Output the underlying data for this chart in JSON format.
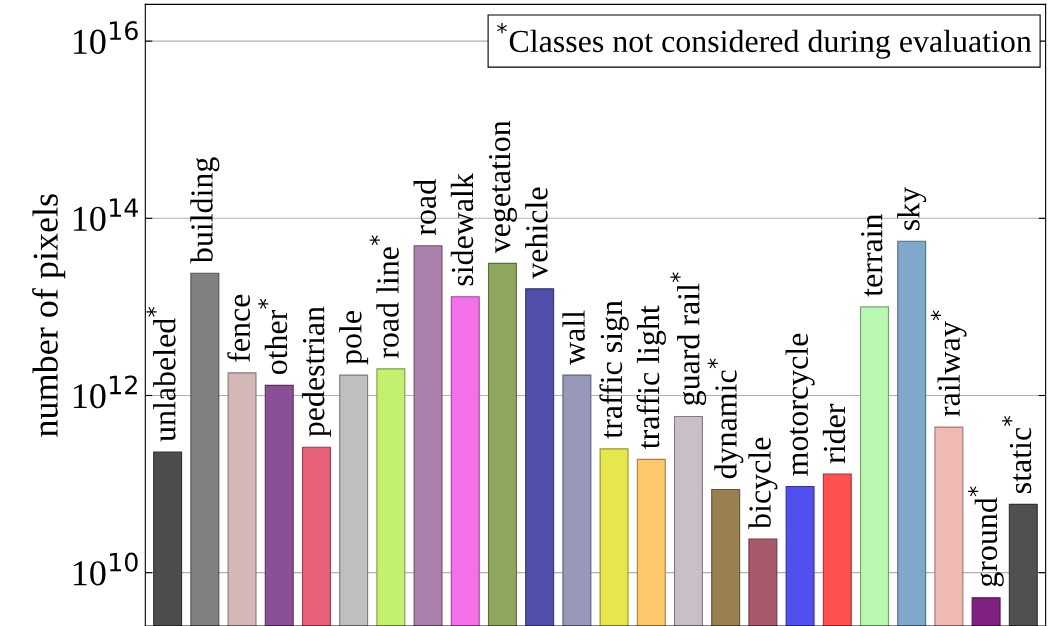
{
  "chart_data": {
    "type": "bar",
    "ylabel": "number of pixels",
    "log": "y",
    "grid": "y",
    "tick_labels": "y",
    "categories": [
      "unlabeled$^{*}$",
      "building",
      "fence",
      "other$^{*}$",
      "pedestrian",
      "pole",
      "road line$^{*}$",
      "road",
      "sidewalk",
      "vegetation",
      "vehicle",
      "wall",
      "traffic sign",
      "traffic light",
      "guard rail$^{*}$",
      "dynamic$^{*}$",
      "bicycle",
      "motorcycle",
      "rider",
      "terrain",
      "sky",
      "railway$^{*}$",
      "ground$^{*}$",
      "static$^{*}$"
    ],
    "values": [
      230000000000.0,
      24000000000000.0,
      1800000000000.0,
      1300000000000.0,
      260000000000.0,
      1700000000000.0,
      2000000000000.0,
      49000000000000.0,
      13000000000000.0,
      31000000000000.0,
      16000000000000.0,
      1700000000000.0,
      250000000000.0,
      190000000000.0,
      580000000000.0,
      87000000000.0,
      24000000000.0,
      94000000000.0,
      130000000000.0,
      10000000000000.0,
      55000000000000.0,
      440000000000.0,
      5200000000.0,
      59000000000.0
    ],
    "colors": [
      "#4d4d4d",
      "#808080",
      "#d4b8b8",
      "#8a4f96",
      "#e8607a",
      "#bfbfbf",
      "#c4f070",
      "#aa80aa",
      "#f470e8",
      "#8fa860",
      "#5050aa",
      "#9898bb",
      "#e6e64d",
      "#fcc86a",
      "#cabec8",
      "#9a8050",
      "#a85a6a",
      "#5050ee",
      "#ff5050",
      "#b8f8b0",
      "#80a8cc",
      "#eebab2",
      "#802080",
      "#505050"
    ],
    "ylim": [
      2500000000.0,
      2.6e+16
    ],
    "yticks": [
      {
        "value": 10000000000.0,
        "label": "10$^{10}$"
      },
      {
        "value": 1000000000000.0,
        "label": "10$^{12}$"
      },
      {
        "value": 100000000000000.0,
        "label": "10$^{14}$"
      },
      {
        "value": 1e+16,
        "label": "10$^{16}$"
      }
    ],
    "annotations": [
      "$^{*}$Classes not considered during evaluation"
    ]
  }
}
